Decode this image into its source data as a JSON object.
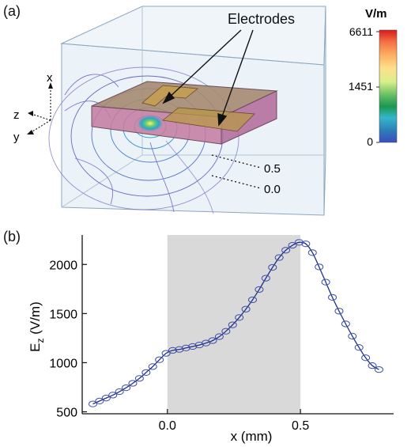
{
  "panel_a": {
    "label": "(a)",
    "callout": "Electrodes",
    "axes": {
      "x": "x",
      "y": "y",
      "z": "z"
    },
    "levels": [
      "0.5",
      "0.0"
    ],
    "colorbar": {
      "unit": "V/m",
      "ticks": [
        "6611",
        "1451",
        "0"
      ],
      "colors": [
        "#d7191c",
        "#f46d43",
        "#fdae61",
        "#fee08b",
        "#d9ef8b",
        "#66bd63",
        "#1a9850",
        "#35b6c9",
        "#2c7bb6",
        "#3b4cc0"
      ]
    }
  },
  "chart_data": {
    "type": "line",
    "panel_label": "(b)",
    "xlabel": "x (mm)",
    "ylabel": "Ez (V/m)",
    "ylabel_main": "E",
    "ylabel_sub": "z",
    "ylabel_tail": " (V/m)",
    "xlim": [
      -0.32,
      0.85
    ],
    "ylim": [
      480,
      2300
    ],
    "xticks": [
      0.0,
      0.5
    ],
    "xtick_labels": [
      "0.0",
      "0.5"
    ],
    "yticks": [
      500,
      1000,
      1500,
      2000
    ],
    "ytick_labels": [
      "500",
      "1000",
      "1500",
      "2000"
    ],
    "shaded_region": [
      0.0,
      0.5
    ],
    "line_color": "#1f2f8a",
    "marker": "circle",
    "x": [
      -0.28,
      -0.255,
      -0.23,
      -0.205,
      -0.18,
      -0.155,
      -0.13,
      -0.105,
      -0.08,
      -0.055,
      -0.03,
      -0.005,
      0.02,
      0.045,
      0.07,
      0.095,
      0.12,
      0.145,
      0.17,
      0.195,
      0.22,
      0.245,
      0.27,
      0.295,
      0.32,
      0.345,
      0.37,
      0.395,
      0.42,
      0.445,
      0.47,
      0.495,
      0.52,
      0.545,
      0.57,
      0.595,
      0.62,
      0.645,
      0.67,
      0.695,
      0.72,
      0.745,
      0.77,
      0.795
    ],
    "y": [
      580,
      610,
      640,
      670,
      705,
      745,
      790,
      840,
      900,
      960,
      1030,
      1095,
      1125,
      1135,
      1150,
      1165,
      1180,
      1200,
      1225,
      1265,
      1320,
      1385,
      1460,
      1545,
      1640,
      1745,
      1860,
      1970,
      2070,
      2145,
      2195,
      2225,
      2210,
      2120,
      1975,
      1820,
      1665,
      1525,
      1395,
      1270,
      1155,
      1050,
      970,
      930
    ]
  }
}
